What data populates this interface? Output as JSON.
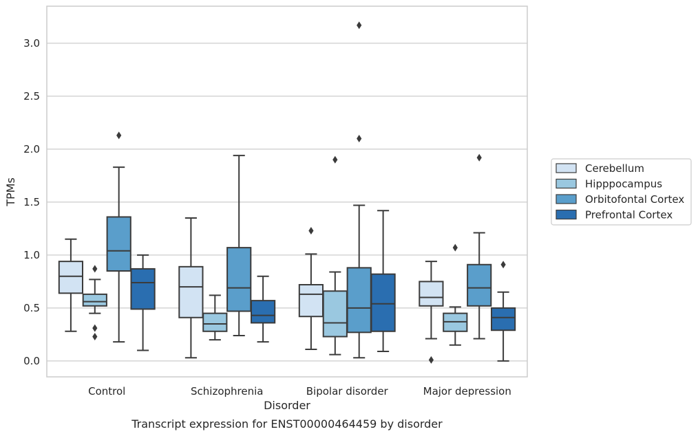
{
  "caption": "Transcript expression for ENST00000464459 by disorder",
  "chart_data": {
    "type": "box",
    "title": "",
    "xlabel": "Disorder",
    "ylabel": "TPMs",
    "ylim": [
      -0.15,
      3.35
    ],
    "yticks": [
      "0.0",
      "0.5",
      "1.0",
      "1.5",
      "2.0",
      "2.5",
      "3.0"
    ],
    "grid": "horizontal",
    "legend_position": "right",
    "categories": [
      "Control",
      "Schizophrenia",
      "Bipolar disorder",
      "Major depression"
    ],
    "series": [
      {
        "name": "Cerebellum",
        "color": "#d2e3f3",
        "boxes": [
          {
            "whislo": 0.28,
            "q1": 0.64,
            "med": 0.8,
            "q3": 0.94,
            "whishi": 1.15,
            "fliers": []
          },
          {
            "whislo": 0.03,
            "q1": 0.41,
            "med": 0.7,
            "q3": 0.89,
            "whishi": 1.35,
            "fliers": []
          },
          {
            "whislo": 0.11,
            "q1": 0.42,
            "med": 0.63,
            "q3": 0.72,
            "whishi": 1.01,
            "fliers": [
              1.23
            ]
          },
          {
            "whislo": 0.21,
            "q1": 0.52,
            "med": 0.6,
            "q3": 0.75,
            "whishi": 0.94,
            "fliers": [
              0.01
            ]
          }
        ]
      },
      {
        "name": "Hipppocampus",
        "color": "#9ac8e0",
        "boxes": [
          {
            "whislo": 0.45,
            "q1": 0.52,
            "med": 0.56,
            "q3": 0.63,
            "whishi": 0.77,
            "fliers": [
              0.87,
              0.31,
              0.23
            ]
          },
          {
            "whislo": 0.2,
            "q1": 0.28,
            "med": 0.35,
            "q3": 0.45,
            "whishi": 0.62,
            "fliers": []
          },
          {
            "whislo": 0.06,
            "q1": 0.23,
            "med": 0.36,
            "q3": 0.66,
            "whishi": 0.84,
            "fliers": [
              1.9
            ]
          },
          {
            "whislo": 0.15,
            "q1": 0.28,
            "med": 0.37,
            "q3": 0.45,
            "whishi": 0.51,
            "fliers": [
              1.07
            ]
          }
        ]
      },
      {
        "name": "Orbitofontal Cortex",
        "color": "#5a9ecb",
        "boxes": [
          {
            "whislo": 0.18,
            "q1": 0.85,
            "med": 1.04,
            "q3": 1.36,
            "whishi": 1.83,
            "fliers": [
              2.13
            ]
          },
          {
            "whislo": 0.24,
            "q1": 0.47,
            "med": 0.69,
            "q3": 1.07,
            "whishi": 1.94,
            "fliers": []
          },
          {
            "whislo": 0.03,
            "q1": 0.27,
            "med": 0.5,
            "q3": 0.88,
            "whishi": 1.47,
            "fliers": [
              3.17,
              2.1
            ]
          },
          {
            "whislo": 0.21,
            "q1": 0.52,
            "med": 0.69,
            "q3": 0.91,
            "whishi": 1.21,
            "fliers": [
              1.92
            ]
          }
        ]
      },
      {
        "name": "Prefrontal Cortex",
        "color": "#2a6eb0",
        "boxes": [
          {
            "whislo": 0.1,
            "q1": 0.49,
            "med": 0.74,
            "q3": 0.87,
            "whishi": 1.0,
            "fliers": []
          },
          {
            "whislo": 0.18,
            "q1": 0.36,
            "med": 0.43,
            "q3": 0.57,
            "whishi": 0.8,
            "fliers": []
          },
          {
            "whislo": 0.09,
            "q1": 0.28,
            "med": 0.54,
            "q3": 0.82,
            "whishi": 1.42,
            "fliers": []
          },
          {
            "whislo": 0.0,
            "q1": 0.29,
            "med": 0.41,
            "q3": 0.5,
            "whishi": 0.65,
            "fliers": [
              0.91
            ]
          }
        ]
      }
    ]
  }
}
